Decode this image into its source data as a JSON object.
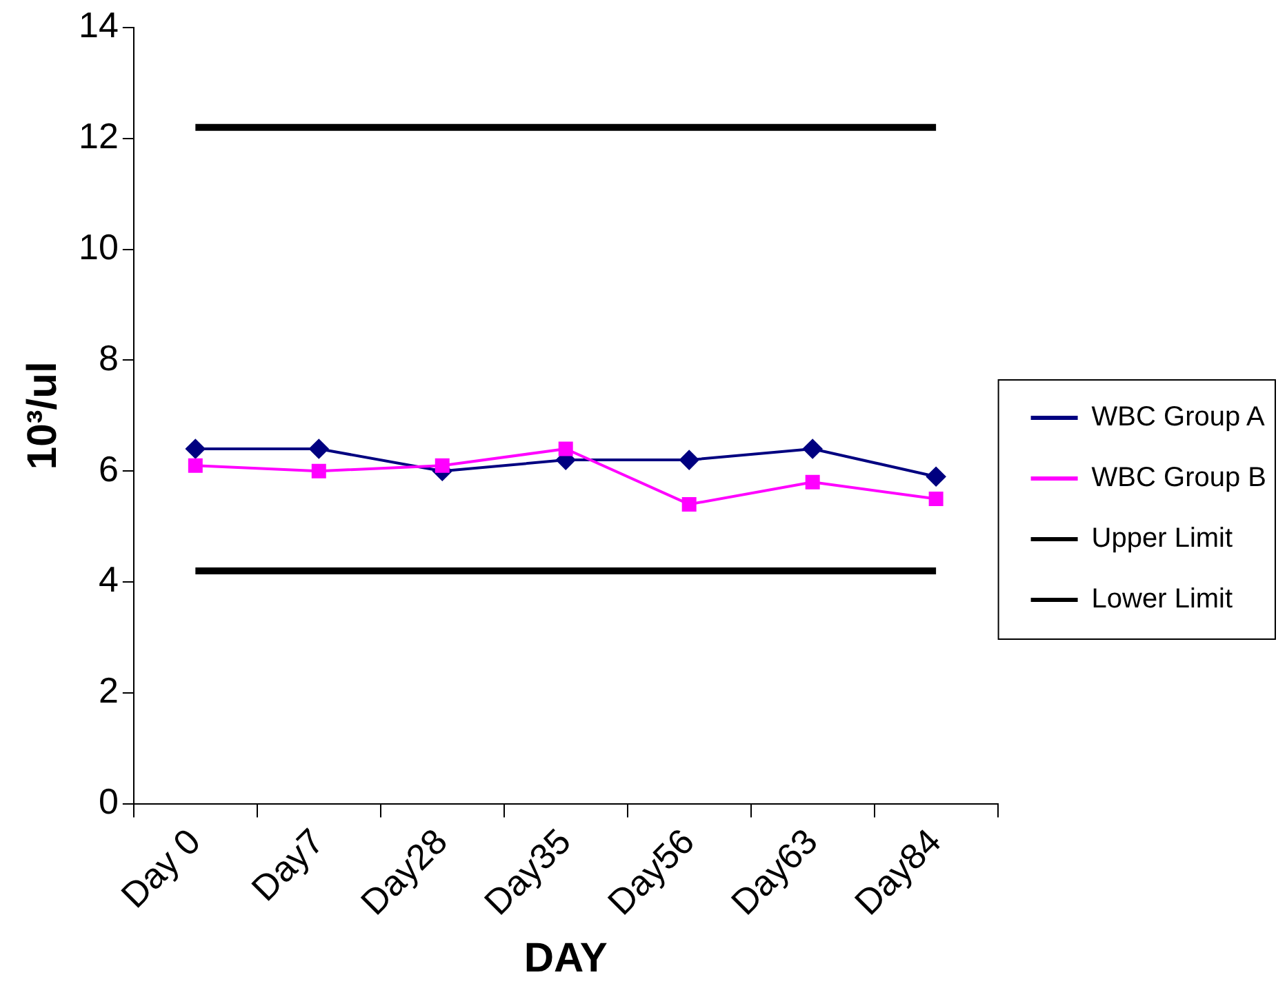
{
  "chart_data": {
    "type": "line",
    "xlabel": "DAY",
    "ylabel": "10³/ul",
    "categories": [
      "Day 0",
      "Day7",
      "Day28",
      "Day35",
      "Day56",
      "Day63",
      "Day84"
    ],
    "series": [
      {
        "name": "WBC Group A",
        "color": "#000080",
        "marker": "diamond",
        "values": [
          6.4,
          6.4,
          6.0,
          6.2,
          6.2,
          6.4,
          5.9
        ]
      },
      {
        "name": "WBC Group B",
        "color": "#ff00ff",
        "marker": "square",
        "values": [
          6.1,
          6.0,
          6.1,
          6.4,
          5.4,
          5.8,
          5.5
        ]
      },
      {
        "name": "Upper Limit",
        "color": "#000000",
        "marker": "none",
        "values": [
          12.2,
          12.2,
          12.2,
          12.2,
          12.2,
          12.2,
          12.2
        ]
      },
      {
        "name": "Lower Limit",
        "color": "#000000",
        "marker": "none",
        "values": [
          4.2,
          4.2,
          4.2,
          4.2,
          4.2,
          4.2,
          4.2
        ]
      }
    ],
    "ylim": [
      0,
      14
    ],
    "yticks": [
      0,
      2,
      4,
      6,
      8,
      10,
      12,
      14
    ],
    "grid": false,
    "legend": "right"
  }
}
